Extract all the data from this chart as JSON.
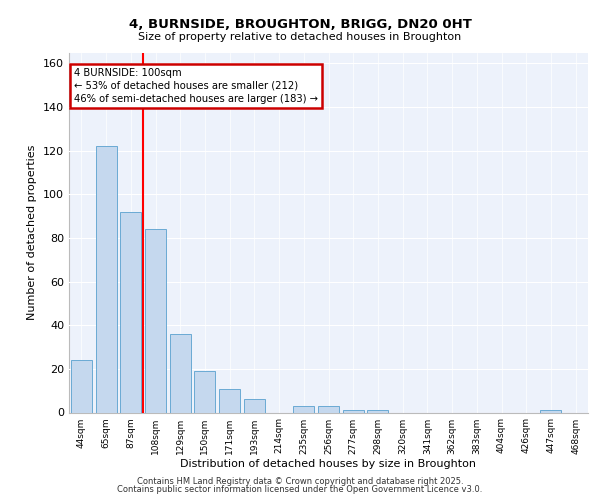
{
  "title1": "4, BURNSIDE, BROUGHTON, BRIGG, DN20 0HT",
  "title2": "Size of property relative to detached houses in Broughton",
  "xlabel": "Distribution of detached houses by size in Broughton",
  "ylabel": "Number of detached properties",
  "categories": [
    "44sqm",
    "65sqm",
    "87sqm",
    "108sqm",
    "129sqm",
    "150sqm",
    "171sqm",
    "193sqm",
    "214sqm",
    "235sqm",
    "256sqm",
    "277sqm",
    "298sqm",
    "320sqm",
    "341sqm",
    "362sqm",
    "383sqm",
    "404sqm",
    "426sqm",
    "447sqm",
    "468sqm"
  ],
  "values": [
    24,
    122,
    92,
    84,
    36,
    19,
    11,
    6,
    0,
    3,
    3,
    1,
    1,
    0,
    0,
    0,
    0,
    0,
    0,
    1,
    0
  ],
  "bar_color": "#c5d8ee",
  "bar_edge_color": "#6aaad4",
  "vline_x_idx": 2.5,
  "annotation_text": "4 BURNSIDE: 100sqm\n← 53% of detached houses are smaller (212)\n46% of semi-detached houses are larger (183) →",
  "annotation_box_color": "#ffffff",
  "annotation_box_edge": "#cc0000",
  "ylim": [
    0,
    165
  ],
  "yticks": [
    0,
    20,
    40,
    60,
    80,
    100,
    120,
    140,
    160
  ],
  "background_color": "#edf2fb",
  "grid_color": "#ffffff",
  "footer1": "Contains HM Land Registry data © Crown copyright and database right 2025.",
  "footer2": "Contains public sector information licensed under the Open Government Licence v3.0."
}
